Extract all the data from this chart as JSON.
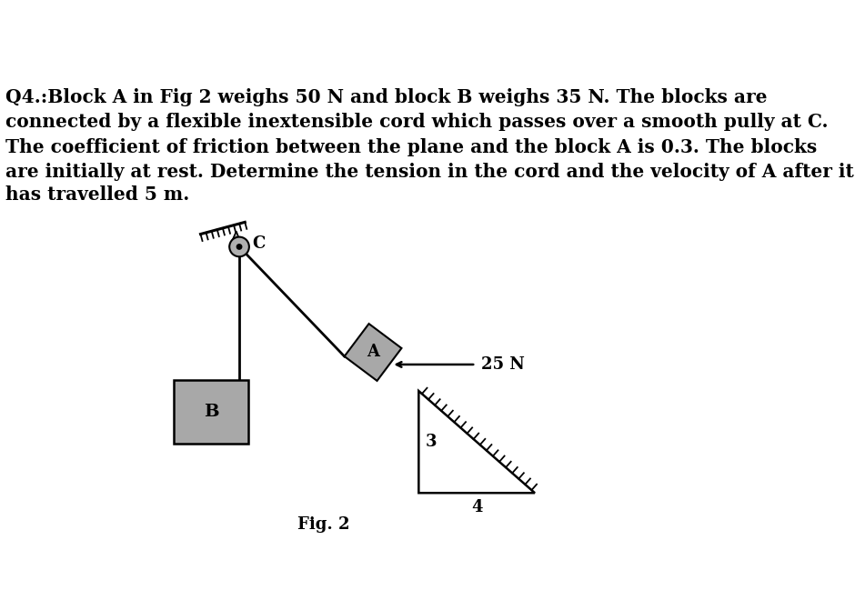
{
  "bg_color": "#ffffff",
  "text_problem": "Q4.:Block A in Fig 2 weighs 50 N and block B weighs 35 N. The blocks are\nconnected by a flexible inextensible cord which passes over a smooth pully at C.\nThe coefficient of friction between the plane and the block A is 0.3. The blocks\nare initially at rest. Determine the tension in the cord and the velocity of A after it\nhas travelled 5 m.",
  "fig_caption": "Fig. 2",
  "label_25N": "25 N",
  "label_3": "3",
  "label_4": "4",
  "label_A": "A",
  "label_B": "B",
  "label_C": "C",
  "block_color": "#a8a8a8",
  "pulley_color": "#b0b0b0",
  "line_color": "#000000",
  "text_fontsize": 14.5,
  "fig_fontsize": 13
}
